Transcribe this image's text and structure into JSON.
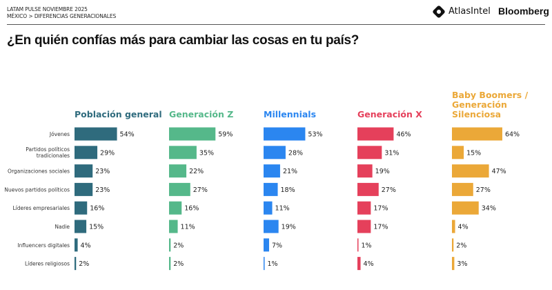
{
  "header": {
    "line1": "LATAM PULSE NOVIEMBRE 2025",
    "line2": "MÉXICO > DIFERENCIAS GENERACIONALES",
    "brand1": "AtlasIntel",
    "brand2": "Bloomberg"
  },
  "chart_data": {
    "type": "bar",
    "orientation": "horizontal",
    "title": "¿En quién confías más para cambiar las cosas en tu país?",
    "categories": [
      "Jóvenes",
      "Partidos políticos tradicionales",
      "Organizaciones sociales",
      "Nuevos partidos políticos",
      "Líderes empresariales",
      "Nadie",
      "Influencers digitales",
      "Líderes religiosos"
    ],
    "unit": "%",
    "series": [
      {
        "name": "Población general",
        "color": "#2f6b7d",
        "values": [
          54,
          29,
          23,
          23,
          16,
          15,
          4,
          2
        ]
      },
      {
        "name": "Generación Z",
        "color": "#55b88a",
        "values": [
          59,
          35,
          22,
          27,
          16,
          11,
          2,
          2
        ]
      },
      {
        "name": "Millennials",
        "color": "#2b86f0",
        "values": [
          53,
          28,
          21,
          18,
          11,
          19,
          7,
          1
        ]
      },
      {
        "name": "Generación X",
        "color": "#e5405b",
        "values": [
          46,
          31,
          19,
          27,
          17,
          17,
          1,
          4
        ]
      },
      {
        "name": "Baby Boomers / Generación Silenciosa",
        "color": "#eba838",
        "values": [
          64,
          15,
          47,
          27,
          34,
          4,
          2,
          3
        ]
      }
    ]
  }
}
